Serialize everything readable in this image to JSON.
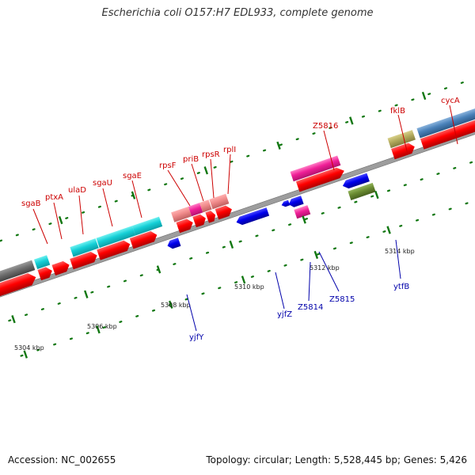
{
  "title": "Escherichia coli O157:H7 EDL933, complete genome",
  "accession": "Accession: NC_002655",
  "summary": "Topology: circular; Length: 5,528,445 bp; Genes: 5,426",
  "colors": {
    "forward_label": "#cc0000",
    "reverse_label": "#0000aa",
    "cds_forward": "#ff0000",
    "cds_reverse": "#0000ee",
    "backbone": "#999999",
    "tick": "#006600"
  },
  "ticks": [
    {
      "label": "5304 kbp"
    },
    {
      "label": "5306 kbp"
    },
    {
      "label": "5308 kbp"
    },
    {
      "label": "5310 kbp"
    },
    {
      "label": "5312 kbp"
    },
    {
      "label": "5314 kbp"
    }
  ],
  "genes_forward": [
    "sgaB",
    "ptxA",
    "ulaD",
    "sgaU",
    "sgaE",
    "rpsF",
    "priB",
    "rpsR",
    "rplI",
    "Z5816",
    "fklB",
    "cycA"
  ],
  "genes_reverse": [
    "yjfY",
    "yjfZ",
    "Z5814",
    "Z5815",
    "ytfB"
  ]
}
